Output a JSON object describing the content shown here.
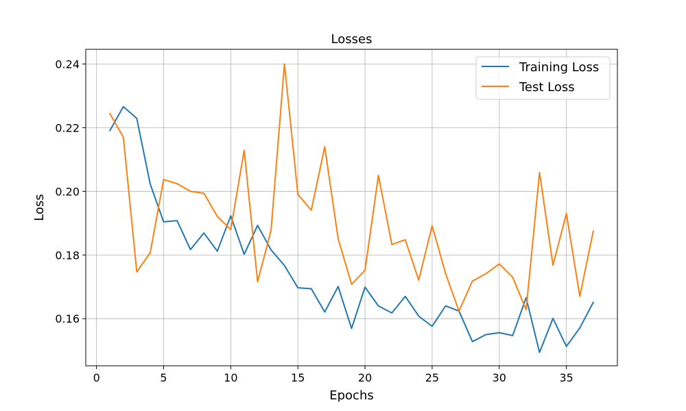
{
  "chart_data": {
    "type": "line",
    "title": "Losses",
    "xlabel": "Epochs",
    "ylabel": "Loss",
    "xlim": [
      -0.8,
      38.8
    ],
    "ylim": [
      0.1452,
      0.2446
    ],
    "xticks": [
      0,
      5,
      10,
      15,
      20,
      25,
      30,
      35
    ],
    "yticks": [
      0.16,
      0.18,
      0.2,
      0.22,
      0.24
    ],
    "ytick_labels": [
      "0.16",
      "0.18",
      "0.20",
      "0.22",
      "0.24"
    ],
    "grid": true,
    "legend_position": "top-right",
    "x": [
      1,
      2,
      3,
      4,
      5,
      6,
      7,
      8,
      9,
      10,
      11,
      12,
      13,
      14,
      15,
      16,
      17,
      18,
      19,
      20,
      21,
      22,
      23,
      24,
      25,
      26,
      27,
      28,
      29,
      30,
      31,
      32,
      33,
      34,
      35,
      36,
      37
    ],
    "series": [
      {
        "name": "Training Loss",
        "color": "#1f77b4",
        "values": [
          0.2191,
          0.2266,
          0.2229,
          0.2023,
          0.1904,
          0.1908,
          0.1817,
          0.1869,
          0.1812,
          0.1923,
          0.1802,
          0.1893,
          0.1816,
          0.1767,
          0.1697,
          0.1694,
          0.1621,
          0.1701,
          0.1569,
          0.1699,
          0.164,
          0.1618,
          0.167,
          0.1608,
          0.1576,
          0.164,
          0.1624,
          0.1528,
          0.155,
          0.1556,
          0.1547,
          0.1666,
          0.1494,
          0.1601,
          0.1513,
          0.1571,
          0.1651
        ]
      },
      {
        "name": "Test Loss",
        "color": "#ff7f0e",
        "values": [
          0.2244,
          0.217,
          0.1747,
          0.1807,
          0.2037,
          0.2024,
          0.2,
          0.1994,
          0.1921,
          0.188,
          0.2129,
          0.1716,
          0.1877,
          0.24,
          0.199,
          0.1941,
          0.214,
          0.1851,
          0.1708,
          0.1752,
          0.205,
          0.1833,
          0.1848,
          0.1721,
          0.1892,
          0.1742,
          0.1624,
          0.1718,
          0.1741,
          0.1772,
          0.173,
          0.1628,
          0.2059,
          0.1768,
          0.193,
          0.167,
          0.1875
        ]
      }
    ]
  }
}
